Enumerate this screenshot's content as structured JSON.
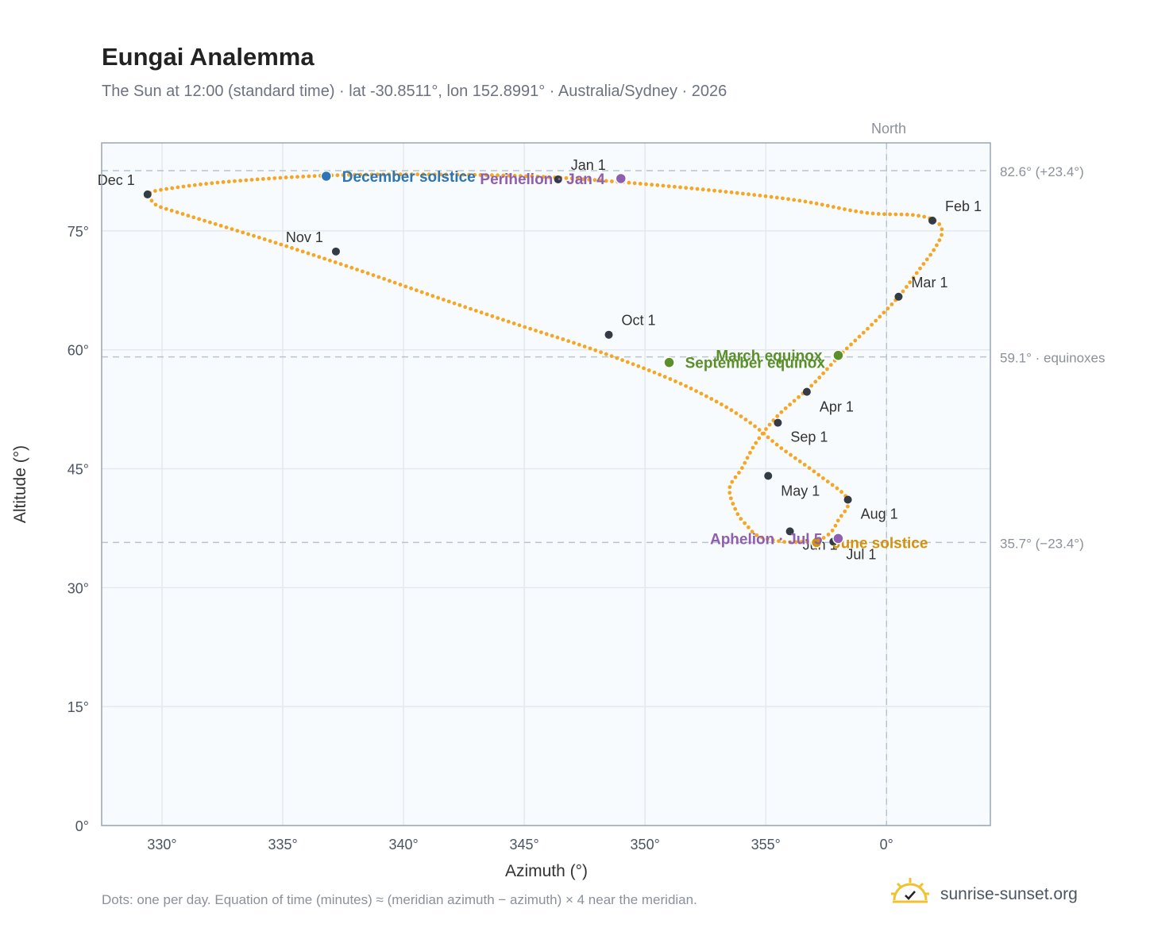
{
  "header": {
    "title": "Eungai Analemma",
    "subtitle": "The Sun at 12:00 (standard time) · lat -30.8511°, lon 152.8991° · Australia/Sydney · 2026"
  },
  "footer": {
    "note": "Dots: one per day. Equation of time (minutes) ≈ (meridian azimuth − azimuth) × 4 near the meridian.",
    "brand": "sunrise-sunset.org"
  },
  "colors": {
    "curve": "#f5a623",
    "month_marker": "#333b45",
    "december_solstice": "#2e75b6",
    "june_solstice": "#d4920a",
    "equinox": "#5a8f29",
    "perihelion_aphelion": "#8e5fb0",
    "plot_bg": "#f8fbfd",
    "grid": "#e3e9ef",
    "reference_line": "#b8c4d0"
  },
  "chart_data": {
    "type": "scatter",
    "xlabel": "Azimuth (°)",
    "ylabel": "Altitude (°)",
    "xlim": [
      -32.5,
      4.3
    ],
    "ylim": [
      0,
      86.1
    ],
    "x_ticks": [
      -30,
      -25,
      -20,
      -15,
      -10,
      -5,
      0
    ],
    "x_tick_labels": [
      "330°",
      "335°",
      "340°",
      "345°",
      "350°",
      "355°",
      "0°"
    ],
    "y_ticks": [
      0,
      15,
      30,
      45,
      60,
      75
    ],
    "y_tick_labels": [
      "0°",
      "15°",
      "30°",
      "45°",
      "60°",
      "75°"
    ],
    "grid": true,
    "meridian": {
      "azimuth": 0,
      "label": "North"
    },
    "reference_lines": [
      {
        "altitude": 82.6,
        "label": "82.6° (+23.4°)"
      },
      {
        "altitude": 59.1,
        "label": "59.1° · equinoxes"
      },
      {
        "altitude": 35.7,
        "label": "35.7° (−23.4°)"
      }
    ],
    "series": [
      {
        "points": [
          [
            -13.5,
            81.7
          ],
          [
            -8.2,
            80.4
          ],
          [
            -3.8,
            78.9
          ],
          [
            -0.9,
            77.3
          ],
          [
            1.1,
            77.0
          ],
          [
            2.0,
            76.3
          ],
          [
            2.3,
            74.9
          ],
          [
            2.0,
            72.8
          ],
          [
            1.4,
            70.3
          ],
          [
            0.5,
            66.7
          ],
          [
            -0.6,
            63.2
          ],
          [
            -1.9,
            59.4
          ],
          [
            -3.1,
            55.5
          ],
          [
            -4.5,
            51.7
          ],
          [
            -5.4,
            48.3
          ],
          [
            -6.0,
            45.0
          ],
          [
            -6.5,
            42.5
          ],
          [
            -6.2,
            39.5
          ],
          [
            -5.8,
            37.9
          ],
          [
            -5.3,
            36.5
          ],
          [
            -4.3,
            35.8
          ],
          [
            -3.4,
            35.8
          ],
          [
            -2.8,
            36.0
          ],
          [
            -2.3,
            37.0
          ],
          [
            -2.0,
            38.5
          ],
          [
            -1.6,
            41.1
          ],
          [
            -2.8,
            44.2
          ],
          [
            -4.4,
            47.7
          ],
          [
            -5.6,
            50.7
          ],
          [
            -7.0,
            53.4
          ],
          [
            -9.1,
            56.5
          ],
          [
            -12.2,
            60.1
          ],
          [
            -15.4,
            63.3
          ],
          [
            -18.7,
            66.7
          ],
          [
            -22.0,
            70.2
          ],
          [
            -25.5,
            73.7
          ],
          [
            -29.0,
            77.0
          ],
          [
            -30.2,
            78.2
          ],
          [
            -30.5,
            79.2
          ],
          [
            -30.6,
            79.6
          ],
          [
            -30.0,
            80.2
          ],
          [
            -27.3,
            81.2
          ],
          [
            -23.0,
            82.0
          ],
          [
            -18.0,
            82.1
          ],
          [
            -13.5,
            81.7
          ]
        ]
      }
    ],
    "month_markers": [
      {
        "label": "Jan 1",
        "az": -13.6,
        "alt": 81.5
      },
      {
        "label": "Feb 1",
        "az": 1.9,
        "alt": 76.3
      },
      {
        "label": "Mar 1",
        "az": 0.5,
        "alt": 66.7
      },
      {
        "label": "Apr 1",
        "az": -3.3,
        "alt": 54.7
      },
      {
        "label": "May 1",
        "az": -4.9,
        "alt": 44.1
      },
      {
        "label": "Jun 1",
        "az": -4.0,
        "alt": 37.1
      },
      {
        "label": "Jul 1",
        "az": -2.2,
        "alt": 35.8
      },
      {
        "label": "Aug 1",
        "az": -1.6,
        "alt": 41.1
      },
      {
        "label": "Sep 1",
        "az": -4.5,
        "alt": 50.8
      },
      {
        "label": "Oct 1",
        "az": -11.5,
        "alt": 61.9
      },
      {
        "label": "Nov 1",
        "az": -22.8,
        "alt": 72.4
      },
      {
        "label": "Dec 1",
        "az": -30.6,
        "alt": 79.6
      }
    ],
    "events": [
      {
        "label": "December solstice",
        "az": -23.2,
        "alt": 81.9,
        "kind": "december_solstice"
      },
      {
        "label": "Perihelion · Jan 4",
        "az": -11.0,
        "alt": 81.6,
        "kind": "perihelion_aphelion"
      },
      {
        "label": "March equinox",
        "az": -2.0,
        "alt": 59.3,
        "kind": "equinox"
      },
      {
        "label": "September equinox",
        "az": -9.0,
        "alt": 58.4,
        "kind": "equinox"
      },
      {
        "label": "June solstice",
        "az": -2.9,
        "alt": 35.7,
        "kind": "june_solstice"
      },
      {
        "label": "Aphelion · Jul 5",
        "az": -2.0,
        "alt": 36.2,
        "kind": "perihelion_aphelion"
      }
    ]
  }
}
